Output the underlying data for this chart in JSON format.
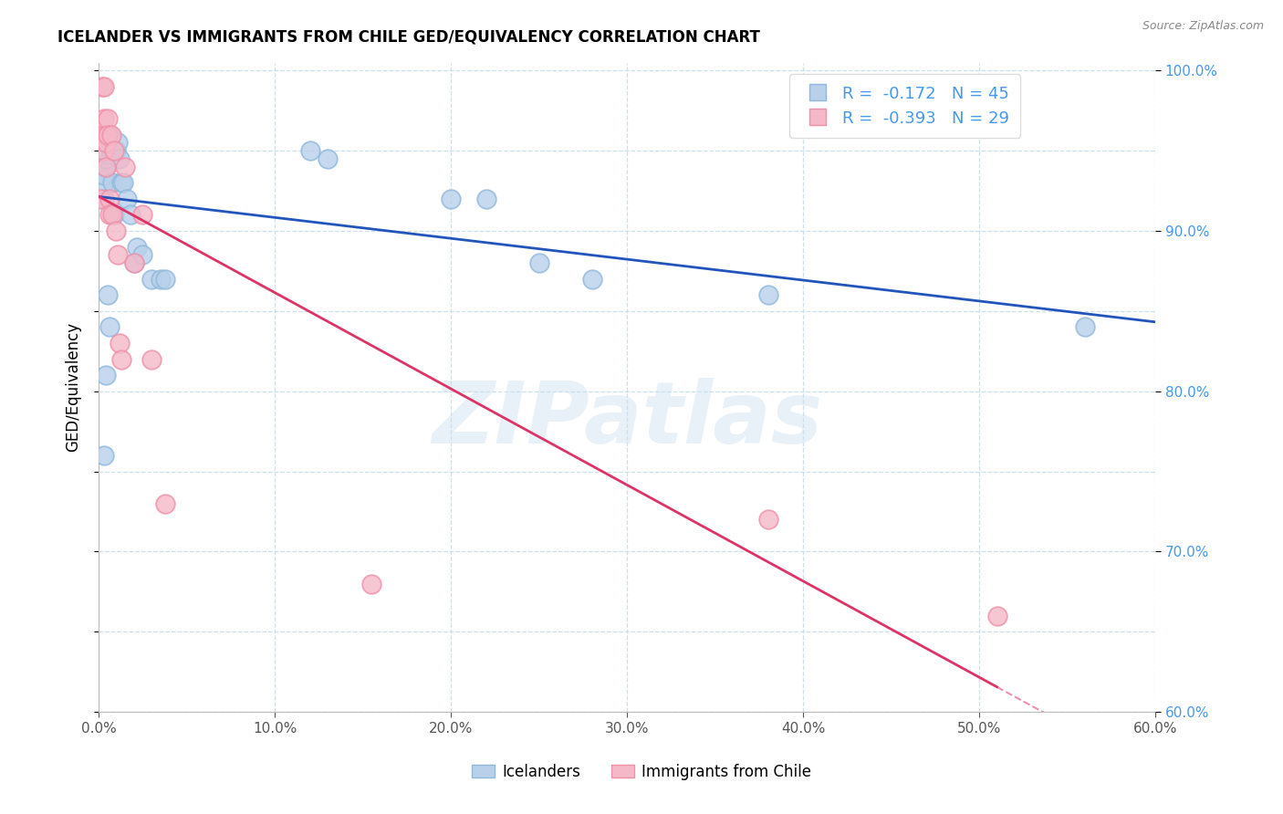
{
  "title": "ICELANDER VS IMMIGRANTS FROM CHILE GED/EQUIVALENCY CORRELATION CHART",
  "source": "Source: ZipAtlas.com",
  "ylabel": "GED/Equivalency",
  "legend_labels": [
    "Icelanders",
    "Immigrants from Chile"
  ],
  "blue_R": -0.172,
  "blue_N": 45,
  "pink_R": -0.393,
  "pink_N": 29,
  "blue_fill": "#b8d0ea",
  "pink_fill": "#f5b8c8",
  "blue_edge": "#90b8dc",
  "pink_edge": "#ef90a8",
  "blue_line_color": "#2255bb",
  "pink_line_color": "#dd3366",
  "x_min": 0.0,
  "x_max": 0.6,
  "y_min": 0.6,
  "y_max": 1.005,
  "watermark_text": "ZIPatlas",
  "blue_scatter_x": [
    0.001,
    0.001,
    0.002,
    0.002,
    0.002,
    0.003,
    0.003,
    0.003,
    0.003,
    0.004,
    0.004,
    0.004,
    0.005,
    0.005,
    0.005,
    0.006,
    0.006,
    0.007,
    0.008,
    0.009,
    0.01,
    0.011,
    0.012,
    0.013,
    0.014,
    0.016,
    0.018,
    0.02,
    0.022,
    0.025,
    0.03,
    0.035,
    0.038,
    0.12,
    0.13,
    0.2,
    0.22,
    0.25,
    0.28,
    0.38,
    0.56,
    0.003,
    0.004,
    0.005,
    0.006
  ],
  "blue_scatter_y": [
    0.95,
    0.948,
    0.955,
    0.958,
    0.94,
    0.945,
    0.93,
    0.92,
    0.935,
    0.95,
    0.94,
    0.945,
    0.955,
    0.95,
    0.948,
    0.96,
    0.958,
    0.95,
    0.93,
    0.91,
    0.95,
    0.955,
    0.945,
    0.93,
    0.93,
    0.92,
    0.91,
    0.88,
    0.89,
    0.885,
    0.87,
    0.87,
    0.87,
    0.95,
    0.945,
    0.92,
    0.92,
    0.88,
    0.87,
    0.86,
    0.84,
    0.76,
    0.81,
    0.86,
    0.84
  ],
  "pink_scatter_x": [
    0.001,
    0.001,
    0.002,
    0.002,
    0.003,
    0.003,
    0.003,
    0.004,
    0.004,
    0.004,
    0.005,
    0.005,
    0.006,
    0.006,
    0.007,
    0.008,
    0.009,
    0.01,
    0.011,
    0.012,
    0.013,
    0.015,
    0.02,
    0.025,
    0.03,
    0.038,
    0.155,
    0.38,
    0.51
  ],
  "pink_scatter_y": [
    0.96,
    0.92,
    0.99,
    0.96,
    0.99,
    0.97,
    0.95,
    0.96,
    0.955,
    0.94,
    0.97,
    0.96,
    0.92,
    0.91,
    0.96,
    0.91,
    0.95,
    0.9,
    0.885,
    0.83,
    0.82,
    0.94,
    0.88,
    0.91,
    0.82,
    0.73,
    0.68,
    0.72,
    0.66
  ]
}
